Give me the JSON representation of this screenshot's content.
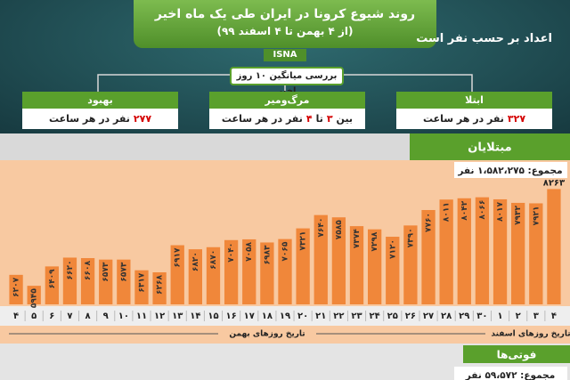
{
  "header": {
    "title": "روند شیوع کرونا در ایران طی یک ماه اخیر",
    "subtitle": "(از ۴ بهمن تا ۴ اسفند ۹۹)",
    "source": "ISNA",
    "note": "اعداد بر حسب نفر است"
  },
  "summary": {
    "title": "بررسی میانگین ۱۰ روز اخیر",
    "items": [
      {
        "label": "ابتلا",
        "parts": [
          {
            "text": "۳۲۷",
            "color": "#d40000"
          },
          {
            "text": "نفر در هر ساعت",
            "color": "#222222"
          }
        ]
      },
      {
        "label": "مرگ‌ومیر",
        "parts": [
          {
            "text": "بین",
            "color": "#222222"
          },
          {
            "text": "۳",
            "color": "#d40000"
          },
          {
            "text": "تا",
            "color": "#222222"
          },
          {
            "text": "۴",
            "color": "#d40000"
          },
          {
            "text": "نفر در هر ساعت",
            "color": "#222222"
          }
        ]
      },
      {
        "label": "بهبود",
        "parts": [
          {
            "text": "۲۷۷",
            "color": "#d40000"
          },
          {
            "text": "نفر در هر ساعت",
            "color": "#222222"
          }
        ]
      }
    ]
  },
  "chart_data": {
    "type": "bar",
    "title": "مبتلایان",
    "annotation": "مجموع: ۱،۵۸۲،۲۷۵ نفر",
    "categories": [
      "۴",
      "۵",
      "۶",
      "۷",
      "۸",
      "۹",
      "۱۰",
      "۱۱",
      "۱۲",
      "۱۳",
      "۱۴",
      "۱۵",
      "۱۶",
      "۱۷",
      "۱۸",
      "۱۹",
      "۲۰",
      "۲۱",
      "۲۲",
      "۲۳",
      "۲۴",
      "۲۵",
      "۲۶",
      "۲۷",
      "۲۸",
      "۲۹",
      "۳۰",
      "۱",
      "۲",
      "۳",
      "۴"
    ],
    "values": [
      6207,
      5945,
      6409,
      6620,
      6608,
      6573,
      6573,
      6317,
      6268,
      6917,
      6820,
      6870,
      7040,
      7058,
      6983,
      7065,
      7321,
      7640,
      7585,
      7374,
      7298,
      7120,
      7390,
      7760,
      8011,
      8042,
      8066,
      8017,
      7932,
      7921,
      8263
    ],
    "value_labels": [
      "۶۲۰۷",
      "۵۹۴۵",
      "۶۴۰۹",
      "۶۶۲۰",
      "۶۶۰۸",
      "۶۵۷۳",
      "۶۵۷۳",
      "۶۳۱۷",
      "۶۲۶۸",
      "۶۹۱۷",
      "۶۸۲۰",
      "۶۸۷۰",
      "۷۰۴۰",
      "۷۰۵۸",
      "۶۹۸۳",
      "۷۰۶۵",
      "۷۳۲۱",
      "۷۶۴۰",
      "۷۵۸۵",
      "۷۳۷۴",
      "۷۲۹۸",
      "۷۱۲۰",
      "۷۳۹۰",
      "۷۷۶۰",
      "۸۰۱۱",
      "۸۰۴۲",
      "۸۰۶۶",
      "۸۰۱۷",
      "۷۹۳۲",
      "۷۹۲۱",
      "۸۲۶۳"
    ],
    "color": "#f0873a",
    "ylim": [
      5500,
      8400
    ],
    "x_group_labels": [
      "تاریخ روزهای بهمن",
      "تاریخ روزهای اسفند"
    ]
  },
  "deaths": {
    "title": "فوتی‌ها",
    "total": "مجموع: ۵۹،۵۷۲ نفر"
  }
}
